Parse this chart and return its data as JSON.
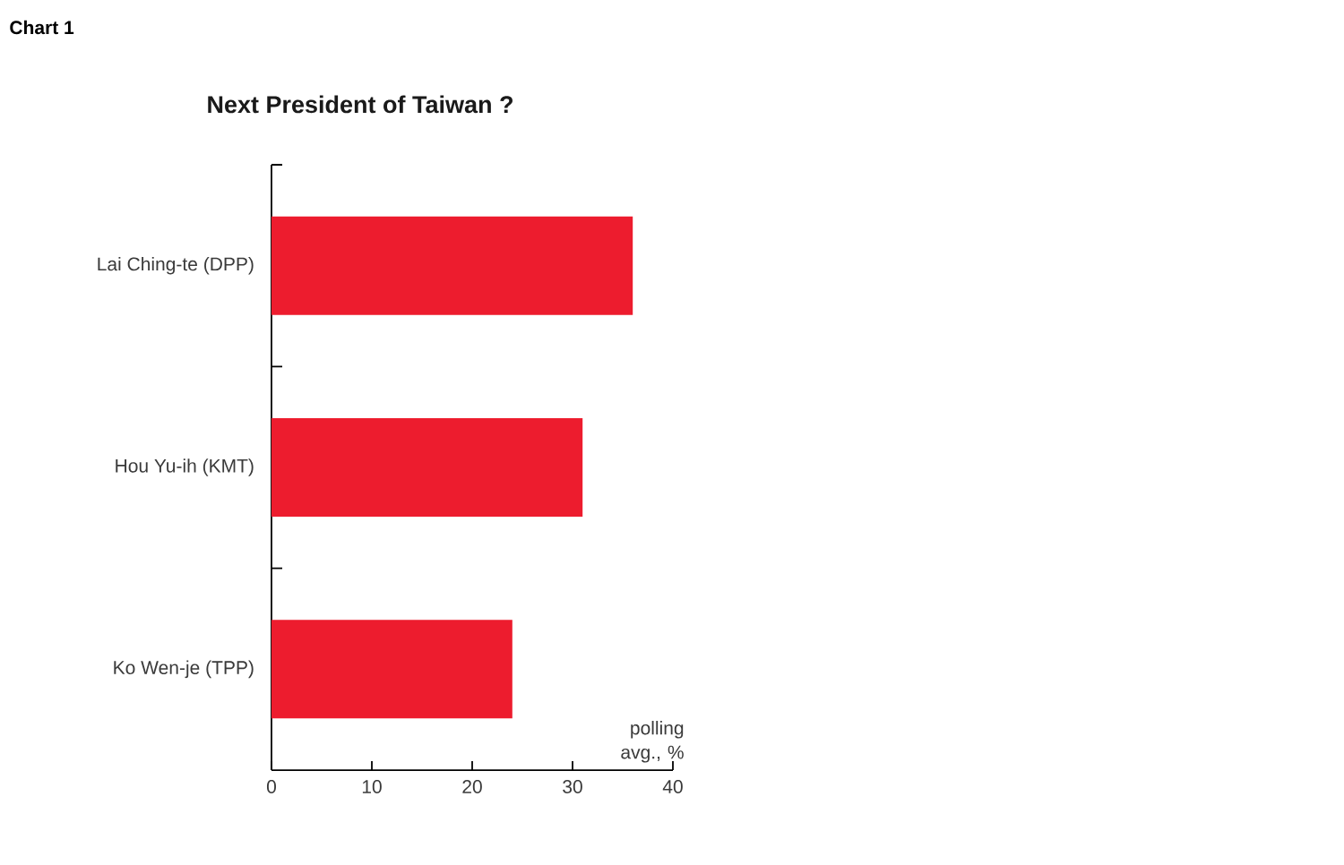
{
  "chart_data": {
    "type": "bar",
    "orientation": "horizontal",
    "title": "Next President of Taiwan ?",
    "annotations": [
      "Chart 1"
    ],
    "xlabel": "polling avg., %",
    "categories": [
      "Lai Ching-te (DPP)",
      "Hou Yu-ih (KMT)",
      "Ko Wen-je (TPP)"
    ],
    "values": [
      36,
      31,
      24
    ],
    "color": "#ed1c2e",
    "xlim": [
      0,
      40
    ],
    "xticks": [
      0,
      10,
      20,
      30,
      40
    ]
  }
}
